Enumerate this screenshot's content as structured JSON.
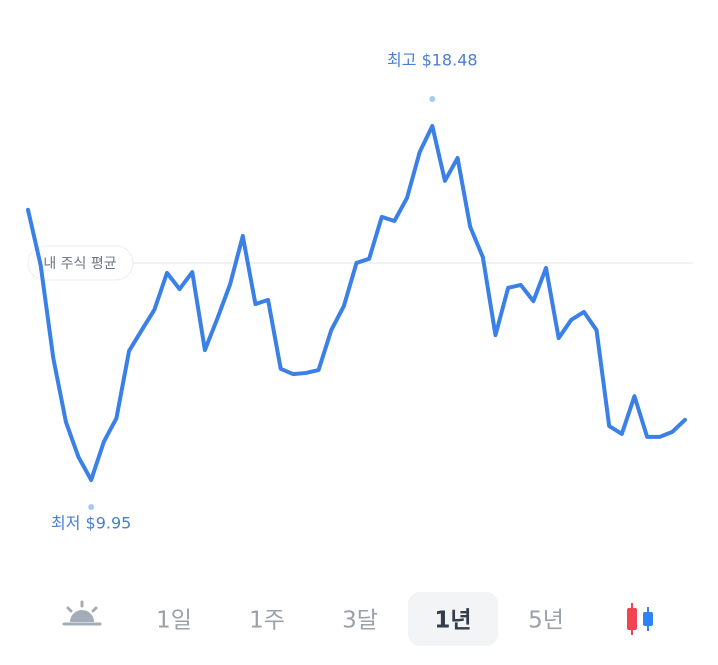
{
  "chart_data": {
    "type": "line",
    "color": "#3a80e6",
    "values": [
      16.46,
      15.13,
      12.89,
      11.35,
      10.5,
      9.95,
      10.87,
      11.44,
      13.06,
      13.56,
      14.05,
      14.94,
      14.55,
      14.96,
      13.08,
      13.85,
      14.67,
      15.83,
      14.19,
      14.29,
      12.63,
      12.5,
      12.53,
      12.6,
      13.56,
      14.14,
      15.18,
      15.28,
      16.29,
      16.19,
      16.75,
      17.85,
      18.48,
      17.16,
      17.71,
      16.05,
      15.32,
      13.44,
      14.58,
      14.65,
      14.26,
      15.06,
      13.37,
      13.81,
      14.0,
      13.56,
      11.25,
      11.06,
      11.97,
      10.99,
      10.99,
      11.11,
      11.4
    ],
    "average": {
      "label": "내 주식 평균",
      "value": 15.18
    },
    "annotations": [
      {
        "text": "최고 $18.48",
        "value": 18.48
      },
      {
        "text": "최저 $9.95",
        "value": 9.95
      }
    ]
  },
  "tabs": {
    "items": [
      "1일",
      "1주",
      "3달",
      "1년",
      "5년"
    ],
    "selected": 3
  }
}
